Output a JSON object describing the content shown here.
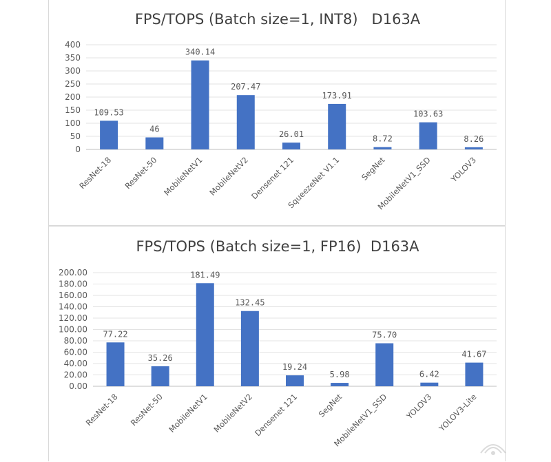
{
  "chart_data": [
    {
      "type": "bar",
      "title": "FPS/TOPS (Batch size=1, INT8)   D163A",
      "categories": [
        "ResNet-18",
        "ResNet-50",
        "MobileNetV1",
        "MobileNetV2",
        "Densenet 121",
        "SqueezeNet V1.1",
        "SegNet",
        "MobileNetV1_SSD",
        "YOLOV3"
      ],
      "values": [
        109.53,
        46,
        340.14,
        207.47,
        26.01,
        173.91,
        8.72,
        103.63,
        8.26
      ],
      "value_labels": [
        "109.53",
        "46",
        "340.14",
        "207.47",
        "26.01",
        "173.91",
        "8.72",
        "103.63",
        "8.26"
      ],
      "yticks": [
        "0",
        "50",
        "100",
        "150",
        "200",
        "250",
        "300",
        "350",
        "400"
      ],
      "ylim": [
        0,
        400
      ],
      "ytick_step": 50,
      "grid": true,
      "bar_color": "#4472c4"
    },
    {
      "type": "bar",
      "title": "FPS/TOPS (Batch size=1, FP16)  D163A",
      "categories": [
        "ResNet-18",
        "ResNet-50",
        "MobileNetV1",
        "MobileNetV2",
        "Densenet 121",
        "SegNet",
        "MobileNetV1_SSD",
        "YOLOV3",
        "YOLOV3-Lite"
      ],
      "values": [
        77.22,
        35.26,
        181.49,
        132.45,
        19.24,
        5.98,
        75.7,
        6.42,
        41.67
      ],
      "value_labels": [
        "77.22",
        "35.26",
        "181.49",
        "132.45",
        "19.24",
        "5.98",
        "75.70",
        "6.42",
        "41.67"
      ],
      "yticks": [
        "0.00",
        "20.00",
        "40.00",
        "60.00",
        "80.00",
        "100.00",
        "120.00",
        "140.00",
        "160.00",
        "180.00",
        "200.00"
      ],
      "ylim": [
        0,
        200
      ],
      "ytick_step": 20,
      "grid": true,
      "bar_color": "#4472c4"
    }
  ],
  "watermark_icon": "logo-watermark-icon"
}
